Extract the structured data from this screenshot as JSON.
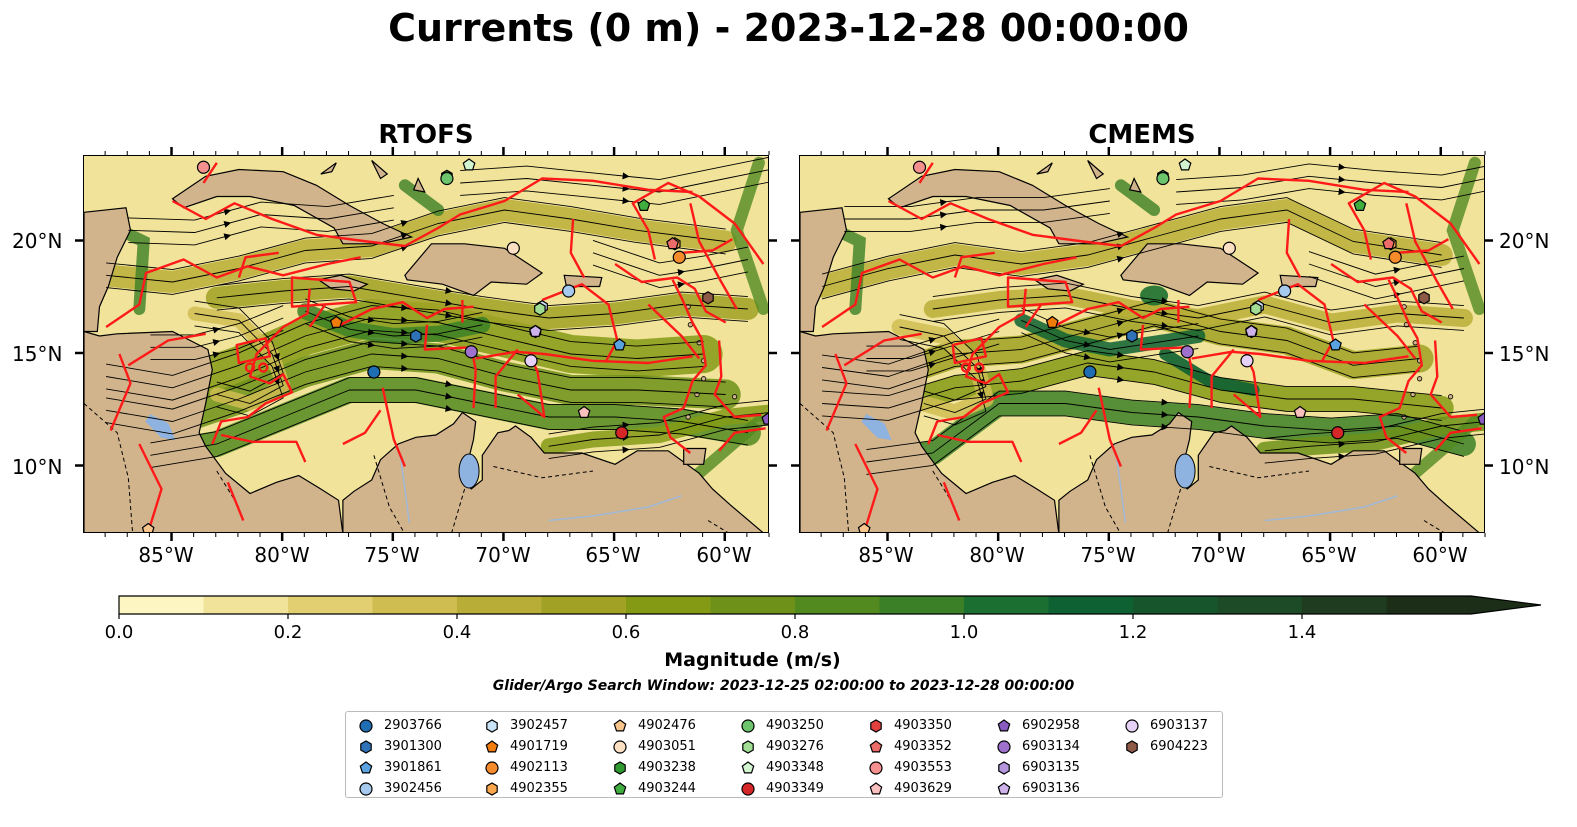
{
  "title": "Currents (0 m) - 2023-12-28 00:00:00",
  "panels": [
    {
      "title": "RTOFS"
    },
    {
      "title": "CMEMS"
    }
  ],
  "longitude_ticks": [
    "85°W",
    "80°W",
    "75°W",
    "70°W",
    "65°W",
    "60°W"
  ],
  "latitude_ticks": [
    "20°N",
    "15°N",
    "10°N"
  ],
  "colorbar": {
    "label": "Magnitude (m/s)",
    "ticks": [
      "0.0",
      "0.2",
      "0.4",
      "0.6",
      "0.8",
      "1.0",
      "1.2",
      "1.4"
    ],
    "colors": [
      "#fdf6c3",
      "#f1e39a",
      "#e1cf72",
      "#d0bd52",
      "#b8ae37",
      "#a0a125",
      "#849a15",
      "#6d9119",
      "#528a20",
      "#3b8026",
      "#1b6f30",
      "#0d6132",
      "#17552d",
      "#1d4a27",
      "#1f3c21",
      "#1c2e18"
    ]
  },
  "search_window": "Glider/Argo Search Window: 2023-12-25 02:00:00 to 2023-12-28 00:00:00",
  "legend": [
    {
      "id": "2903766",
      "marker": "circle",
      "color": "#1f6eb4"
    },
    {
      "id": "3901300",
      "marker": "hexagon",
      "color": "#2f72b8"
    },
    {
      "id": "3901861",
      "marker": "pentagon",
      "color": "#5aa3e0"
    },
    {
      "id": "3902456",
      "marker": "circle",
      "color": "#a6c9ee"
    },
    {
      "id": "3902457",
      "marker": "hexagon",
      "color": "#c9e3f7"
    },
    {
      "id": "4901719",
      "marker": "pentagon",
      "color": "#f07c0c"
    },
    {
      "id": "4902113",
      "marker": "circle",
      "color": "#f58b2a"
    },
    {
      "id": "4902355",
      "marker": "hexagon",
      "color": "#f9a64c"
    },
    {
      "id": "4902476",
      "marker": "pentagon",
      "color": "#f7c48c"
    },
    {
      "id": "4903051",
      "marker": "circle",
      "color": "#fce0c4"
    },
    {
      "id": "4903238",
      "marker": "hexagon",
      "color": "#2f9a2f"
    },
    {
      "id": "4903244",
      "marker": "pentagon",
      "color": "#3fae3f"
    },
    {
      "id": "4903250",
      "marker": "circle",
      "color": "#6cc46c"
    },
    {
      "id": "4903276",
      "marker": "hexagon",
      "color": "#a1dd95"
    },
    {
      "id": "4903348",
      "marker": "pentagon",
      "color": "#d2f5d0"
    },
    {
      "id": "4903349",
      "marker": "circle",
      "color": "#d62728"
    },
    {
      "id": "4903350",
      "marker": "hexagon",
      "color": "#e0413f"
    },
    {
      "id": "4903352",
      "marker": "pentagon",
      "color": "#ec6c6a"
    },
    {
      "id": "4903553",
      "marker": "circle",
      "color": "#f4908e"
    },
    {
      "id": "4903629",
      "marker": "pentagon",
      "color": "#f9c0be"
    },
    {
      "id": "6902958",
      "marker": "pentagon",
      "color": "#8a5cbf"
    },
    {
      "id": "6903134",
      "marker": "circle",
      "color": "#9d71cc"
    },
    {
      "id": "6903135",
      "marker": "hexagon",
      "color": "#b596dc"
    },
    {
      "id": "6903136",
      "marker": "pentagon",
      "color": "#cdb3ea"
    },
    {
      "id": "6903137",
      "marker": "circle",
      "color": "#e6d2f6"
    },
    {
      "id": "6904223",
      "marker": "hexagon",
      "color": "#8c5a46"
    }
  ],
  "platform_positions": [
    {
      "id": "2903766",
      "lon": -75.9,
      "lat": 14.2
    },
    {
      "id": "3901300",
      "lon": -74.0,
      "lat": 15.8
    },
    {
      "id": "3901861",
      "lon": -64.8,
      "lat": 15.4
    },
    {
      "id": "3902456",
      "lon": -67.1,
      "lat": 17.8
    },
    {
      "id": "3902457",
      "lon": -68.3,
      "lat": 17.1
    },
    {
      "id": "4901719",
      "lon": -77.6,
      "lat": 16.4
    },
    {
      "id": "4902113",
      "lon": -62.1,
      "lat": 19.3
    },
    {
      "id": "4902355",
      "lon": -62.3,
      "lat": 19.9
    },
    {
      "id": "4902476",
      "lon": -86.1,
      "lat": 7.2
    },
    {
      "id": "4903051",
      "lon": -69.6,
      "lat": 19.7
    },
    {
      "id": "4903238",
      "lon": -72.6,
      "lat": 22.9
    },
    {
      "id": "4903244",
      "lon": -63.7,
      "lat": 21.6
    },
    {
      "id": "4903250",
      "lon": -72.6,
      "lat": 22.8
    },
    {
      "id": "4903276",
      "lon": -68.4,
      "lat": 17.0
    },
    {
      "id": "4903348",
      "lon": -71.6,
      "lat": 23.4
    },
    {
      "id": "4903349",
      "lon": -64.7,
      "lat": 11.5
    },
    {
      "id": "4903350",
      "lon": -71.5,
      "lat": 15.1
    },
    {
      "id": "4903352",
      "lon": -62.4,
      "lat": 19.9
    },
    {
      "id": "4903553",
      "lon": -83.6,
      "lat": 23.3
    },
    {
      "id": "4903629",
      "lon": -66.4,
      "lat": 12.4
    },
    {
      "id": "6902958",
      "lon": -58.1,
      "lat": 12.1
    },
    {
      "id": "6903134",
      "lon": -71.5,
      "lat": 15.1
    },
    {
      "id": "6903135",
      "lon": -68.6,
      "lat": 16.0
    },
    {
      "id": "6903136",
      "lon": -68.6,
      "lat": 16.0
    },
    {
      "id": "6903137",
      "lon": -68.8,
      "lat": 14.7
    },
    {
      "id": "6904223",
      "lon": -60.8,
      "lat": 17.5
    }
  ]
}
